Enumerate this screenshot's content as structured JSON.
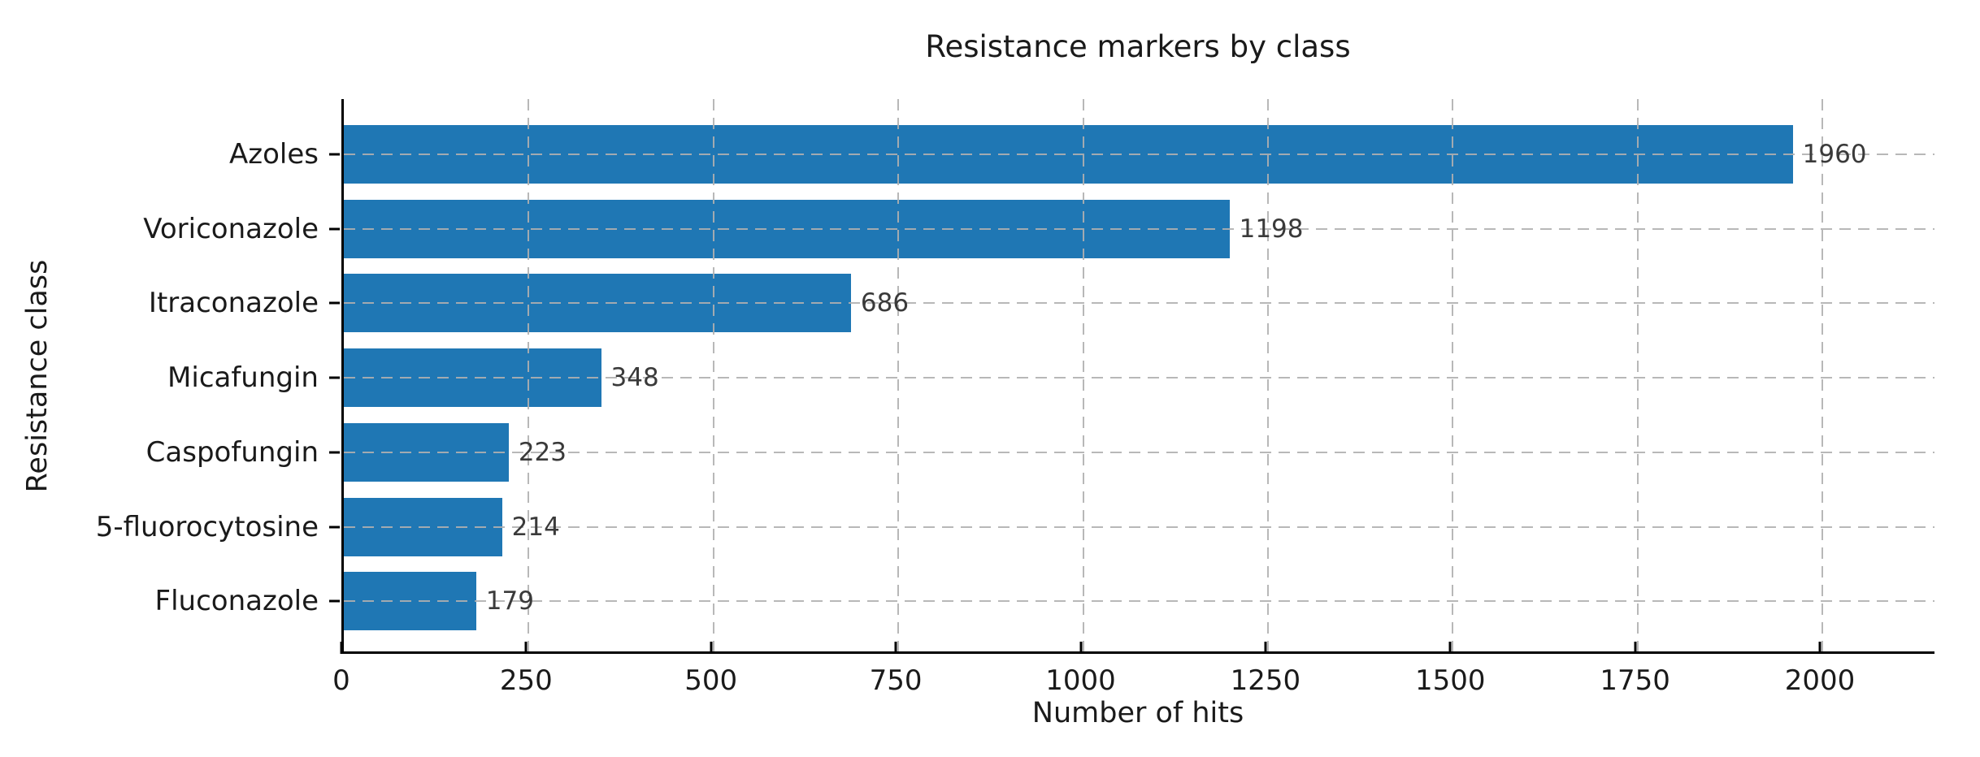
{
  "chart_data": {
    "type": "bar",
    "orientation": "horizontal",
    "title": "Resistance markers by class",
    "xlabel": "Number of hits",
    "ylabel": "Resistance class",
    "categories": [
      "Azoles",
      "Voriconazole",
      "Itraconazole",
      "Micafungin",
      "Caspofungin",
      "5-fluorocytosine",
      "Fluconazole"
    ],
    "values": [
      1960,
      1198,
      686,
      348,
      223,
      214,
      179
    ],
    "bar_labels": [
      "1960",
      "1198",
      "686",
      "348",
      "223",
      "214",
      "179"
    ],
    "x_ticks": [
      0,
      250,
      500,
      750,
      1000,
      1250,
      1500,
      1750,
      2000
    ],
    "xlim": [
      0,
      2155
    ],
    "grid": "dashed gridlines on both axes, drawn over bars",
    "legend": null,
    "colors": {
      "bar": "#1f77b4",
      "grid": "#b0b0b0",
      "text": "#1a1a1a",
      "value_label_text": "#3a3a3a",
      "spine": "#000000",
      "background": "#ffffff"
    }
  }
}
